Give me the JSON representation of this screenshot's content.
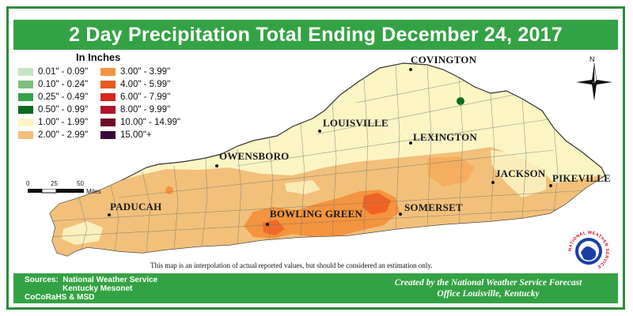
{
  "title": "2 Day Precipitation Total Ending December 24, 2017",
  "legend": {
    "title": "In Inches",
    "items": [
      {
        "label": "0.01\" - 0.09\"",
        "color": "#c4e6c4"
      },
      {
        "label": "0.10\" - 0.24\"",
        "color": "#7cc07c"
      },
      {
        "label": "0.25\" - 0.49\"",
        "color": "#34a24a"
      },
      {
        "label": "0.50\" - 0.99\"",
        "color": "#0a6a1e"
      },
      {
        "label": "1.00\" - 1.99\"",
        "color": "#fbf5c4"
      },
      {
        "label": "2.00\" - 2.99\"",
        "color": "#f2c07a"
      },
      {
        "label": "3.00\" - 3.99\"",
        "color": "#f4943e"
      },
      {
        "label": "4.00\" - 5.99\"",
        "color": "#ec5a1e"
      },
      {
        "label": "6.00\" - 7.99\"",
        "color": "#d8261e"
      },
      {
        "label": "8.00\" - 9.99\"",
        "color": "#b0142e"
      },
      {
        "label": "10.00\" - 14.99\"",
        "color": "#6e0a26"
      },
      {
        "label": "15.00\"+",
        "color": "#3a0a3a"
      }
    ]
  },
  "cities": [
    {
      "name": "COVINGTON"
    },
    {
      "name": "LOUISVILLE"
    },
    {
      "name": "LEXINGTON"
    },
    {
      "name": "OWENSBORO"
    },
    {
      "name": "JACKSON"
    },
    {
      "name": "PIKEVILLE"
    },
    {
      "name": "PADUCAH"
    },
    {
      "name": "BOWLING GREEN"
    },
    {
      "name": "SOMERSET"
    }
  ],
  "scale_bar": {
    "ticks": [
      "0",
      "25",
      "50"
    ],
    "unit": "Miles"
  },
  "north_label": "N",
  "disclaimer": "This map is an interpolation of actual reported values, but should be considered an estimation only.",
  "sources": {
    "label": "Sources:",
    "lines": [
      "National Weather Service",
      "Kentucky Mesonet",
      "CoCoRaHS & MSD"
    ]
  },
  "credit": {
    "line1": "Created by the National Weather Service Forecast",
    "line2": "Office Louisville, Kentucky"
  },
  "logo_text": "NATIONAL WEATHER SERVICE",
  "colors": {
    "frame": "#2e8b3a",
    "banner": "#33a244",
    "banner_text": "#ffffff"
  }
}
